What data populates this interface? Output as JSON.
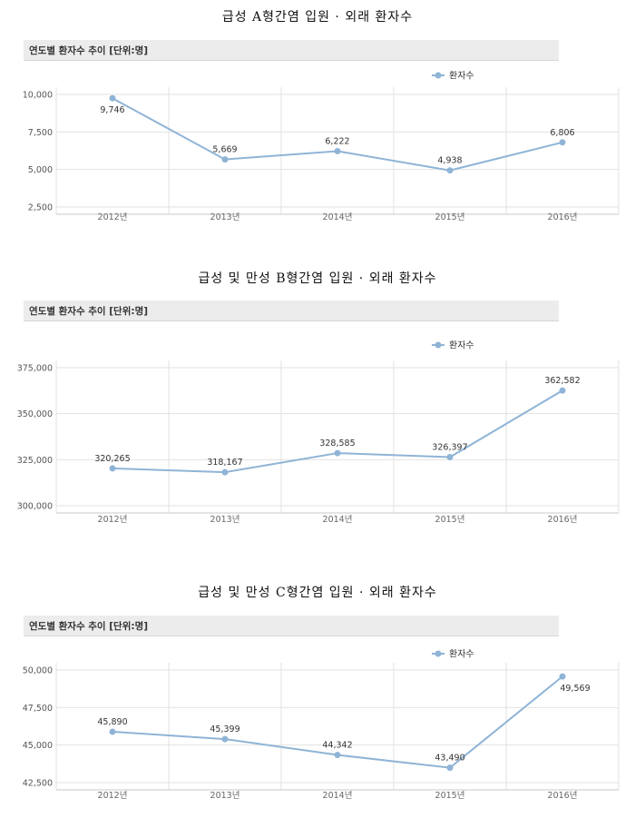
{
  "charts": [
    {
      "title": "급성 A형간염 입원 · 외래 환자수",
      "subheader": "연도별 환자수 추이 [단위:명]"
    },
    {
      "title": "급성 및 만성 B형간염 입원 · 외래 환자수",
      "subheader": "연도별 환자수 추이 [단위:명]"
    },
    {
      "title": "급성 및 만성 C형간염 입원 · 외래 환자수",
      "subheader": "연도별 환자수 추이 [단위:명]"
    }
  ],
  "colors": {
    "series": "#8fb4d6",
    "grid": "#e2e2e2",
    "header_bg": "#ececec"
  },
  "chart_data": [
    {
      "type": "line",
      "title": "급성 A형간염 입원 · 외래 환자수",
      "categories": [
        "2012년",
        "2013년",
        "2014년",
        "2015년",
        "2016년"
      ],
      "series": [
        {
          "name": "환자수",
          "values": [
            9746,
            5669,
            6222,
            4938,
            6806
          ]
        }
      ],
      "data_labels": [
        "9,746",
        "5,669",
        "6,222",
        "4,938",
        "6,806"
      ],
      "yticks": [
        "10,000",
        "7,500",
        "5,000",
        "2,500"
      ],
      "ytick_values": [
        10000,
        7500,
        5000,
        2500
      ],
      "ylim": [
        2500,
        10000
      ],
      "legend": "top-right",
      "grid": true
    },
    {
      "type": "line",
      "title": "급성 및 만성 B형간염 입원 · 외래 환자수",
      "categories": [
        "2012년",
        "2013년",
        "2014년",
        "2015년",
        "2016년"
      ],
      "series": [
        {
          "name": "환자수",
          "values": [
            320265,
            318167,
            328585,
            326397,
            362582
          ]
        }
      ],
      "data_labels": [
        "320,265",
        "318,167",
        "328,585",
        "326,397",
        "362,582"
      ],
      "yticks": [
        "375,000",
        "350,000",
        "325,000",
        "300,000"
      ],
      "ytick_values": [
        375000,
        350000,
        325000,
        300000
      ],
      "ylim": [
        300000,
        375000
      ],
      "legend": "top-right",
      "grid": true
    },
    {
      "type": "line",
      "title": "급성 및 만성 C형간염 입원 · 외래 환자수",
      "categories": [
        "2012년",
        "2013년",
        "2014년",
        "2015년",
        "2016년"
      ],
      "series": [
        {
          "name": "환자수",
          "values": [
            45890,
            45399,
            44342,
            43490,
            49569
          ]
        }
      ],
      "data_labels": [
        "45,890",
        "45,399",
        "44,342",
        "43,490",
        "49,569"
      ],
      "yticks": [
        "50,000",
        "47,500",
        "45,000",
        "42,500"
      ],
      "ytick_values": [
        50000,
        47500,
        45000,
        42500
      ],
      "ylim": [
        42500,
        50000
      ],
      "legend": "top-right",
      "grid": true
    }
  ]
}
